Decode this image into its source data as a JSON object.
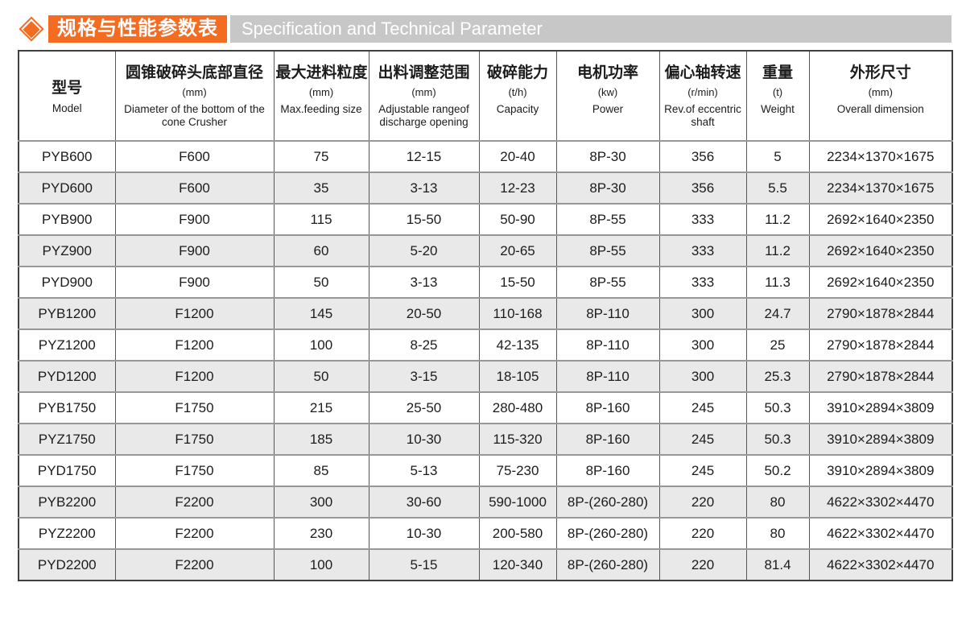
{
  "colors": {
    "accent": "#f36c21",
    "title_bar_bg": "#c7c7c7",
    "row_stripe": "#e9e9e9"
  },
  "header": {
    "title_cn": "规格与性能参数表",
    "title_en": "Specification and Technical Parameter"
  },
  "table": {
    "columns": [
      {
        "cn": "型号",
        "unit": "",
        "en": "Model"
      },
      {
        "cn": "圆锥破碎头底部直径",
        "unit": "(mm)",
        "en": "Diameter of the bottom of the cone Crusher"
      },
      {
        "cn": "最大进料粒度",
        "unit": "(mm)",
        "en": "Max.feeding size"
      },
      {
        "cn": "出料调整范围",
        "unit": "(mm)",
        "en": "Adjustable rangeof discharge opening"
      },
      {
        "cn": "破碎能力",
        "unit": "(t/h)",
        "en": "Capacity"
      },
      {
        "cn": "电机功率",
        "unit": "(kw)",
        "en": "Power"
      },
      {
        "cn": "偏心轴转速",
        "unit": "(r/min)",
        "en": "Rev.of eccentric shaft"
      },
      {
        "cn": "重量",
        "unit": "(t)",
        "en": "Weight"
      },
      {
        "cn": "外形尺寸",
        "unit": "(mm)",
        "en": "Overall dimension"
      }
    ],
    "rows": [
      [
        "PYB600",
        "F600",
        "75",
        "12-15",
        "20-40",
        "8P-30",
        "356",
        "5",
        "2234×1370×1675"
      ],
      [
        "PYD600",
        "F600",
        "35",
        "3-13",
        "12-23",
        "8P-30",
        "356",
        "5.5",
        "2234×1370×1675"
      ],
      [
        "PYB900",
        "F900",
        "115",
        "15-50",
        "50-90",
        "8P-55",
        "333",
        "11.2",
        "2692×1640×2350"
      ],
      [
        "PYZ900",
        "F900",
        "60",
        "5-20",
        "20-65",
        "8P-55",
        "333",
        "11.2",
        "2692×1640×2350"
      ],
      [
        "PYD900",
        "F900",
        "50",
        "3-13",
        "15-50",
        "8P-55",
        "333",
        "11.3",
        "2692×1640×2350"
      ],
      [
        "PYB1200",
        "F1200",
        "145",
        "20-50",
        "110-168",
        "8P-110",
        "300",
        "24.7",
        "2790×1878×2844"
      ],
      [
        "PYZ1200",
        "F1200",
        "100",
        "8-25",
        "42-135",
        "8P-110",
        "300",
        "25",
        "2790×1878×2844"
      ],
      [
        "PYD1200",
        "F1200",
        "50",
        "3-15",
        "18-105",
        "8P-110",
        "300",
        "25.3",
        "2790×1878×2844"
      ],
      [
        "PYB1750",
        "F1750",
        "215",
        "25-50",
        "280-480",
        "8P-160",
        "245",
        "50.3",
        "3910×2894×3809"
      ],
      [
        "PYZ1750",
        "F1750",
        "185",
        "10-30",
        "115-320",
        "8P-160",
        "245",
        "50.3",
        "3910×2894×3809"
      ],
      [
        "PYD1750",
        "F1750",
        "85",
        "5-13",
        "75-230",
        "8P-160",
        "245",
        "50.2",
        "3910×2894×3809"
      ],
      [
        "PYB2200",
        "F2200",
        "300",
        "30-60",
        "590-1000",
        "8P-(260-280)",
        "220",
        "80",
        "4622×3302×4470"
      ],
      [
        "PYZ2200",
        "F2200",
        "230",
        "10-30",
        "200-580",
        "8P-(260-280)",
        "220",
        "80",
        "4622×3302×4470"
      ],
      [
        "PYD2200",
        "F2200",
        "100",
        "5-15",
        "120-340",
        "8P-(260-280)",
        "220",
        "81.4",
        "4622×3302×4470"
      ]
    ]
  }
}
